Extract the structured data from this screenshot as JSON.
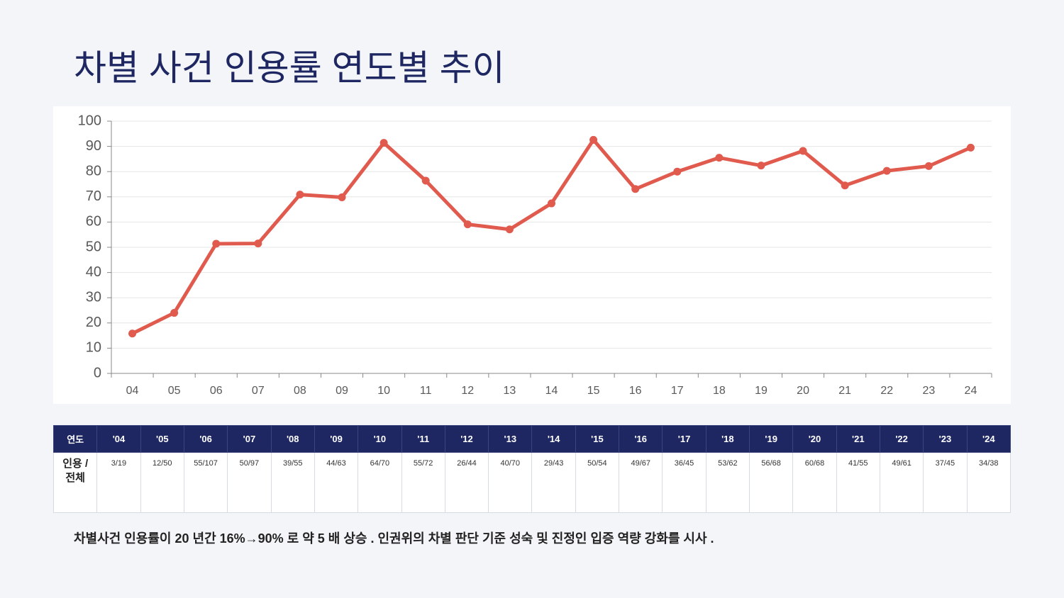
{
  "chart_data": {
    "type": "line",
    "title": "차별 사건 인용률 연도별 추이",
    "categories": [
      "04",
      "05",
      "06",
      "07",
      "08",
      "09",
      "10",
      "11",
      "12",
      "13",
      "14",
      "15",
      "16",
      "17",
      "18",
      "19",
      "20",
      "21",
      "22",
      "23",
      "24"
    ],
    "values": [
      15.8,
      24,
      51.4,
      51.5,
      70.9,
      69.8,
      91.4,
      76.4,
      59.1,
      57.1,
      67.4,
      92.6,
      73.1,
      80,
      85.5,
      82.4,
      88.2,
      74.5,
      80.3,
      82.2,
      89.5
    ],
    "color": "#e05a4e",
    "ylim": [
      0,
      100
    ],
    "yticks": [
      0,
      10,
      20,
      30,
      40,
      50,
      60,
      70,
      80,
      90,
      100
    ],
    "grid": true
  },
  "table": {
    "columns": [
      "연도",
      "'04",
      "'05",
      "'06",
      "'07",
      "'08",
      "'09",
      "'10",
      "'11",
      "'12",
      "'13",
      "'14",
      "'15",
      "'16",
      "'17",
      "'18",
      "'19",
      "'20",
      "'21",
      "'22",
      "'23",
      "'24"
    ],
    "rows": [
      [
        "인용 / 전체",
        "3/19",
        "12/50",
        "55/107",
        "50/97",
        "39/55",
        "44/63",
        "64/70",
        "55/72",
        "26/44",
        "40/70",
        "29/43",
        "50/54",
        "49/67",
        "36/45",
        "53/62",
        "56/68",
        "60/68",
        "41/55",
        "49/61",
        "37/45",
        "34/38"
      ]
    ]
  },
  "note": "차별사건 인용률이 20 년간 16%→90% 로 약 5 배 상승 . 인권위의 차별 판단 기준 성숙 및 진정인 입증 역량 강화를 시사 ."
}
